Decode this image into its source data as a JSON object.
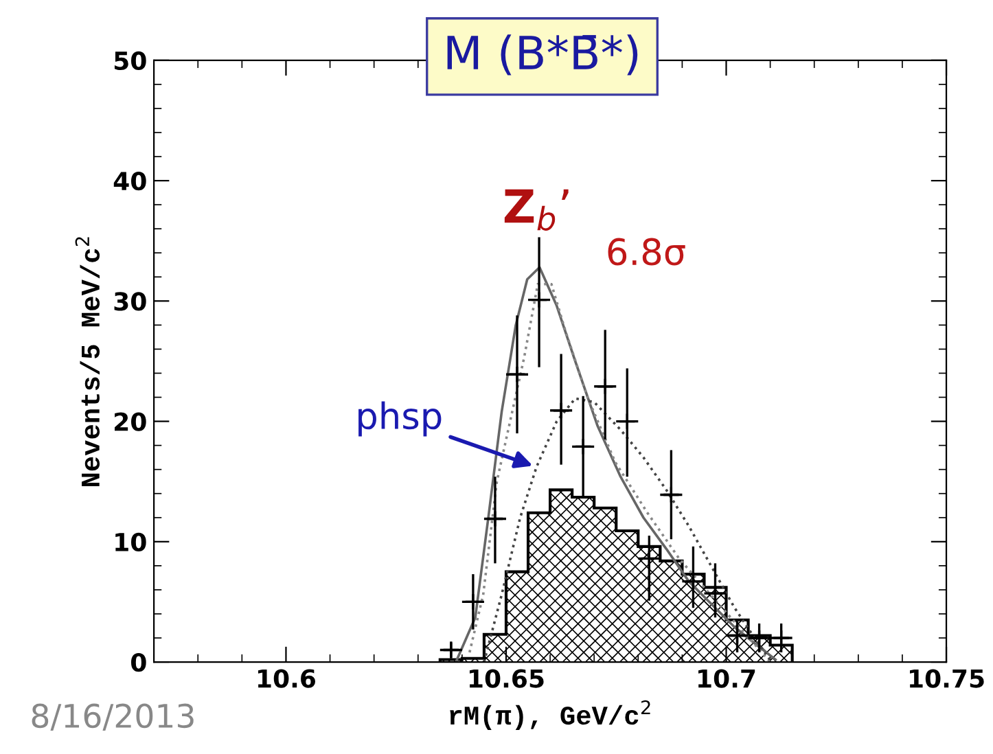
{
  "chart_data": {
    "type": "scatter",
    "title": "M (B*B̄*)",
    "xlabel": "rM(π), GeV/c$^{2}$",
    "ylabel": "Nevents/5 MeV/c$^{2}$",
    "xlim": [
      10.57,
      10.75
    ],
    "xticks": [
      10.6,
      10.65,
      10.7,
      10.75
    ],
    "ylim": [
      0,
      50
    ],
    "yticks": [
      0,
      10,
      20,
      30,
      40,
      50
    ],
    "grid": false,
    "legend": false,
    "series": [
      {
        "type": "histogram",
        "color": "#000000",
        "bins": [
          10.635,
          10.64,
          10.645,
          10.65,
          10.655,
          10.66,
          10.665,
          10.67,
          10.675,
          10.68,
          10.685,
          10.69,
          10.695,
          10.7,
          10.705,
          10.71,
          10.715
        ],
        "values": [
          0.2,
          0.3,
          2.3,
          7.5,
          12.4,
          14.3,
          13.7,
          12.8,
          10.9,
          9.6,
          8.4,
          7.3,
          6.2,
          3.5,
          2.2,
          1.4
        ]
      },
      {
        "type": "line",
        "color": "#666666",
        "line_style": "solid",
        "x": [
          10.6386,
          10.643,
          10.646,
          10.649,
          10.6522,
          10.6548,
          10.6576,
          10.6615,
          10.6657,
          10.6708,
          10.676,
          10.6812,
          10.6864,
          10.6915,
          10.6967,
          10.7019,
          10.707,
          10.7112
        ],
        "values": [
          0,
          3.7,
          12.1,
          20.8,
          28.0,
          31.8,
          32.8,
          29.6,
          25.0,
          19.6,
          15.4,
          12.0,
          9.4,
          6.7,
          4.8,
          2.9,
          1.4,
          0.2
        ]
      },
      {
        "type": "line",
        "color": "#888888",
        "line_style": "dotted",
        "x": [
          10.6417,
          10.6448,
          10.6479,
          10.6541,
          10.6572,
          10.6603,
          10.6634,
          10.6686,
          10.6748,
          10.6821,
          10.6893,
          10.6976,
          10.7059,
          10.71
        ],
        "values": [
          0.8,
          5.6,
          15.0,
          25.3,
          31.4,
          31.4,
          27.6,
          21.9,
          16.6,
          12.4,
          8.6,
          5.1,
          1.7,
          0
        ]
      },
      {
        "type": "line",
        "color": "#444444",
        "line_style": "dotted",
        "x": [
          10.645,
          10.649,
          10.6532,
          10.6569,
          10.6615,
          10.6657,
          10.67,
          10.676,
          10.6812,
          10.6864,
          10.6915,
          10.6967,
          10.7019,
          10.707,
          10.7103
        ],
        "values": [
          0,
          5.6,
          12.0,
          16.2,
          20.0,
          21.9,
          21.6,
          19.3,
          17.0,
          14.3,
          11.3,
          7.9,
          4.5,
          1.7,
          0
        ]
      },
      {
        "color": "#000000",
        "marker": "cross",
        "x": [
          10.6375,
          10.6425,
          10.6475,
          10.6525,
          10.6575,
          10.6625,
          10.6675,
          10.6725,
          10.6775,
          10.6825,
          10.6875,
          10.6925,
          10.6975,
          10.7025,
          10.7075,
          10.7125
        ],
        "values": [
          1.0,
          5.0,
          11.9,
          23.9,
          30.1,
          20.9,
          17.9,
          22.9,
          20.0,
          8.6,
          13.9,
          6.7,
          5.7,
          2.2,
          2.0,
          2.0
        ],
        "errors": [
          [
            0.3,
            1.7
          ],
          [
            2.7,
            7.3
          ],
          [
            8.2,
            15.4
          ],
          [
            19.0,
            28.8
          ],
          [
            24.5,
            35.3
          ],
          [
            16.4,
            25.6
          ],
          [
            13.7,
            22.1
          ],
          [
            18.5,
            27.6
          ],
          [
            15.4,
            24.4
          ],
          [
            5.1,
            10.5
          ],
          [
            10.2,
            17.6
          ],
          [
            4.5,
            9.6
          ],
          [
            3.7,
            8.2
          ],
          [
            0.8,
            3.4
          ],
          [
            0.8,
            3.2
          ],
          [
            0.8,
            3.2
          ]
        ],
        "xerrors": [
          0.0025,
          0.0025,
          0.0025,
          0.0025,
          0.0025,
          0.0025,
          0.0025,
          0.0025,
          0.0025,
          0.0025,
          0.0025,
          0.0025,
          0.0025,
          0.0025,
          0.0025,
          0.0025
        ]
      }
    ],
    "annotations": [
      "Z$_{b}$’",
      "6.8σ",
      {
        "text": "phsp",
        "x": 10.6569,
        "y": 16.2
      },
      "8/16/2013"
    ]
  }
}
